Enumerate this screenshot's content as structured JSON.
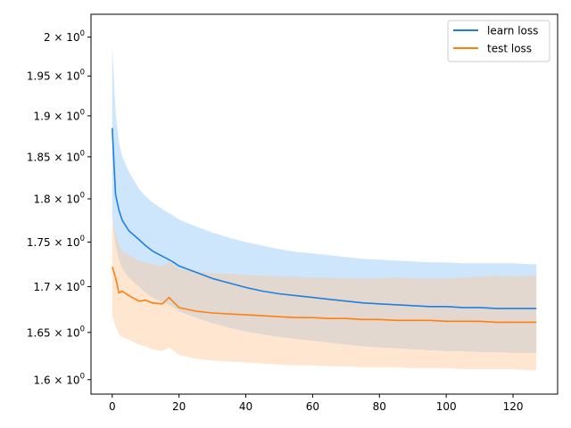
{
  "chart_data": {
    "type": "line",
    "title": "",
    "xlabel": "",
    "ylabel": "",
    "yscale": "log",
    "xlim": [
      -6.35,
      133.35
    ],
    "ylim": [
      1.585,
      2.03
    ],
    "grid": false,
    "legend_position": "top-right",
    "x_ticks": [
      {
        "value": 0,
        "label": "0"
      },
      {
        "value": 20,
        "label": "20"
      },
      {
        "value": 40,
        "label": "40"
      },
      {
        "value": 60,
        "label": "60"
      },
      {
        "value": 80,
        "label": "80"
      },
      {
        "value": 100,
        "label": "100"
      },
      {
        "value": 120,
        "label": "120"
      }
    ],
    "y_ticks": [
      {
        "value": 1.6,
        "mantissa": "1.6",
        "base": "10",
        "exp": "0"
      },
      {
        "value": 1.65,
        "mantissa": "1.65",
        "base": "10",
        "exp": "0"
      },
      {
        "value": 1.7,
        "mantissa": "1.7",
        "base": "10",
        "exp": "0"
      },
      {
        "value": 1.75,
        "mantissa": "1.75",
        "base": "10",
        "exp": "0"
      },
      {
        "value": 1.8,
        "mantissa": "1.8",
        "base": "10",
        "exp": "0"
      },
      {
        "value": 1.85,
        "mantissa": "1.85",
        "base": "10",
        "exp": "0"
      },
      {
        "value": 1.9,
        "mantissa": "1.9",
        "base": "10",
        "exp": "0"
      },
      {
        "value": 1.95,
        "mantissa": "1.95",
        "base": "10",
        "exp": "0"
      },
      {
        "value": 2.0,
        "mantissa": "2",
        "base": "10",
        "exp": "0"
      }
    ],
    "series": [
      {
        "name": "learn loss",
        "color": "#1f7fe0",
        "band_color": "#90c8f8",
        "x": [
          0,
          1,
          2,
          3,
          5,
          8,
          10,
          12,
          15,
          18,
          20,
          25,
          30,
          35,
          40,
          45,
          50,
          55,
          60,
          65,
          70,
          75,
          80,
          85,
          90,
          95,
          100,
          105,
          110,
          115,
          120,
          125,
          127
        ],
        "values": [
          1.885,
          1.805,
          1.787,
          1.775,
          1.763,
          1.753,
          1.746,
          1.74,
          1.734,
          1.728,
          1.723,
          1.716,
          1.709,
          1.704,
          1.699,
          1.695,
          1.692,
          1.69,
          1.688,
          1.686,
          1.684,
          1.682,
          1.681,
          1.68,
          1.679,
          1.678,
          1.678,
          1.677,
          1.677,
          1.676,
          1.676,
          1.676,
          1.676
        ],
        "upper": [
          1.99,
          1.905,
          1.868,
          1.85,
          1.832,
          1.812,
          1.803,
          1.796,
          1.788,
          1.781,
          1.776,
          1.768,
          1.761,
          1.755,
          1.75,
          1.746,
          1.742,
          1.739,
          1.737,
          1.735,
          1.733,
          1.731,
          1.73,
          1.729,
          1.728,
          1.727,
          1.727,
          1.726,
          1.726,
          1.726,
          1.726,
          1.725,
          1.725
        ],
        "lower": [
          1.78,
          1.747,
          1.73,
          1.72,
          1.71,
          1.7,
          1.693,
          1.688,
          1.683,
          1.678,
          1.673,
          1.666,
          1.66,
          1.655,
          1.651,
          1.648,
          1.645,
          1.643,
          1.641,
          1.639,
          1.637,
          1.635,
          1.634,
          1.633,
          1.632,
          1.631,
          1.63,
          1.63,
          1.629,
          1.629,
          1.628,
          1.628,
          1.628
        ]
      },
      {
        "name": "test loss",
        "color": "#ff7f0e",
        "band_color": "#ffc898",
        "x": [
          0,
          1,
          2,
          3,
          5,
          8,
          10,
          12,
          15,
          17,
          20,
          25,
          30,
          35,
          40,
          45,
          50,
          55,
          60,
          65,
          70,
          75,
          80,
          85,
          90,
          95,
          100,
          105,
          110,
          115,
          120,
          125,
          127
        ],
        "values": [
          1.722,
          1.71,
          1.693,
          1.695,
          1.69,
          1.684,
          1.685,
          1.682,
          1.681,
          1.688,
          1.677,
          1.673,
          1.671,
          1.67,
          1.669,
          1.668,
          1.667,
          1.666,
          1.666,
          1.665,
          1.665,
          1.664,
          1.664,
          1.663,
          1.663,
          1.663,
          1.662,
          1.662,
          1.662,
          1.661,
          1.661,
          1.661,
          1.661
        ],
        "upper": [
          1.775,
          1.76,
          1.748,
          1.74,
          1.735,
          1.729,
          1.727,
          1.725,
          1.723,
          1.728,
          1.72,
          1.717,
          1.715,
          1.714,
          1.713,
          1.712,
          1.711,
          1.711,
          1.71,
          1.71,
          1.709,
          1.709,
          1.709,
          1.71,
          1.709,
          1.709,
          1.709,
          1.71,
          1.711,
          1.712,
          1.711,
          1.712,
          1.712
        ],
        "lower": [
          1.668,
          1.657,
          1.648,
          1.645,
          1.642,
          1.637,
          1.635,
          1.632,
          1.63,
          1.634,
          1.626,
          1.622,
          1.62,
          1.619,
          1.618,
          1.617,
          1.616,
          1.615,
          1.615,
          1.614,
          1.614,
          1.613,
          1.613,
          1.613,
          1.612,
          1.612,
          1.612,
          1.611,
          1.611,
          1.611,
          1.611,
          1.61,
          1.61
        ]
      }
    ]
  }
}
